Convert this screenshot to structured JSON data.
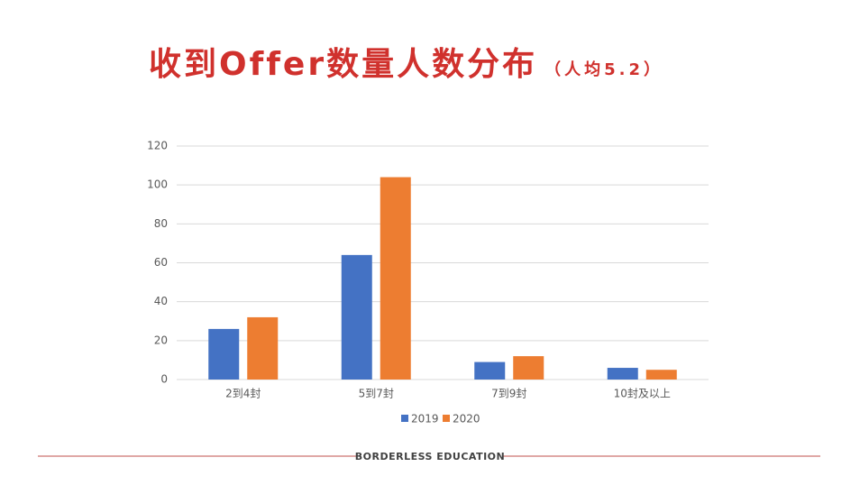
{
  "chart_data": {
    "type": "bar",
    "title": "收到Offer数量人数分布",
    "subtitle": "（人均5.2）",
    "categories": [
      "2到4封",
      "5到7封",
      "7到9封",
      "10封及以上"
    ],
    "series": [
      {
        "name": "2019",
        "color": "#4472c4",
        "values": [
          26,
          64,
          9,
          6
        ]
      },
      {
        "name": "2020",
        "color": "#ed7d31",
        "values": [
          32,
          104,
          12,
          5
        ]
      }
    ],
    "ylim": [
      0,
      120
    ],
    "yticks": [
      0,
      20,
      40,
      60,
      80,
      100,
      120
    ],
    "grid": true,
    "legend": "bottom"
  },
  "footer": "BORDERLESS EDUCATION"
}
